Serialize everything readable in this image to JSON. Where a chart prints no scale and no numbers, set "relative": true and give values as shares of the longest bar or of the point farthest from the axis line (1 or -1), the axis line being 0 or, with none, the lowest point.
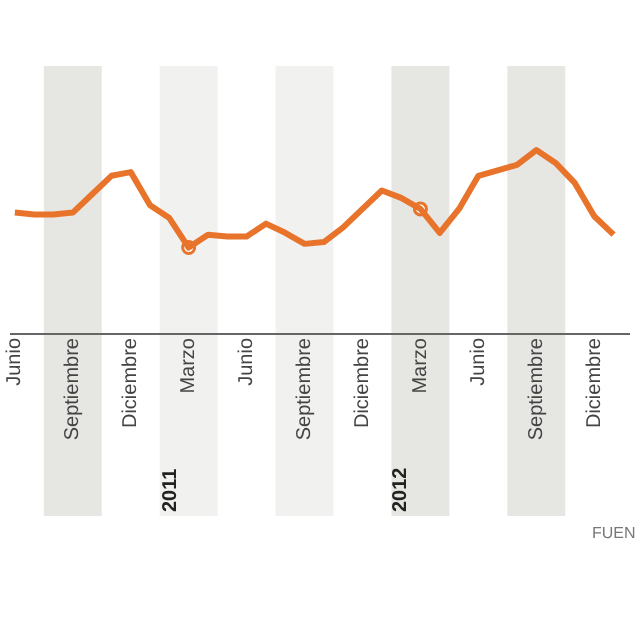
{
  "chart_data": {
    "type": "line",
    "relative": true,
    "x": [
      "2010-06",
      "2010-07",
      "2010-08",
      "2010-09",
      "2010-10",
      "2010-11",
      "2010-12",
      "2011-01",
      "2011-02",
      "2011-03",
      "2011-04",
      "2011-05",
      "2011-06",
      "2011-07",
      "2011-08",
      "2011-09",
      "2011-10",
      "2011-11",
      "2011-12",
      "2012-01",
      "2012-02",
      "2012-03",
      "2012-04",
      "2012-05",
      "2012-06",
      "2012-07",
      "2012-08",
      "2012-09",
      "2012-10",
      "2012-11",
      "2012-12",
      "2013-01"
    ],
    "series": [
      {
        "color": "#e8742c",
        "values": [
          0.66,
          0.65,
          0.65,
          0.66,
          0.76,
          0.86,
          0.88,
          0.7,
          0.63,
          0.47,
          0.54,
          0.53,
          0.53,
          0.6,
          0.55,
          0.49,
          0.5,
          0.58,
          0.68,
          0.78,
          0.74,
          0.68,
          0.55,
          0.68,
          0.86,
          0.89,
          0.92,
          1,
          0.93,
          0.82,
          0.64,
          0.54
        ]
      },
      {
        "type": "scatter",
        "color": "#e8742c",
        "marker": "circle",
        "x": [
          "2011-03",
          "2012-03"
        ],
        "values": [
          0.47,
          0.68
        ]
      }
    ],
    "xlim": [
      "2010-05-25",
      "2013-01-25"
    ],
    "xticks": [
      {
        "value": "2010-06",
        "label": "Junio"
      },
      {
        "value": "2010-09",
        "label": "Septiembre"
      },
      {
        "value": "2010-12",
        "label": "Diciembre"
      },
      {
        "value": "2011-03",
        "label": "Marzo"
      },
      {
        "value": "2011-06",
        "label": "Junio"
      },
      {
        "value": "2011-09",
        "label": "Septiembre"
      },
      {
        "value": "2011-12",
        "label": "Diciembre"
      },
      {
        "value": "2012-03",
        "label": "Marzo"
      },
      {
        "value": "2012-06",
        "label": "Junio"
      },
      {
        "value": "2012-09",
        "label": "Septiembre"
      },
      {
        "value": "2012-12",
        "label": "Diciembre"
      }
    ],
    "bands": [
      {
        "axis": "x",
        "from": "2010-07-16",
        "to": "2010-10-16",
        "color": "#e6e6e3"
      },
      {
        "axis": "x",
        "from": "2011-01-16",
        "to": "2011-04-16",
        "color": "#f1f1ef"
      },
      {
        "axis": "x",
        "from": "2011-07-16",
        "to": "2011-10-16",
        "color": "#f1f1ef"
      },
      {
        "axis": "x",
        "from": "2012-01-16",
        "to": "2012-04-16",
        "color": "#e6e6e3"
      },
      {
        "axis": "x",
        "from": "2012-07-16",
        "to": "2012-10-16",
        "color": "#e6e6e3"
      }
    ],
    "annotations": [
      "2011",
      "2012",
      "FUEN"
    ],
    "grid": false,
    "legend": false
  }
}
